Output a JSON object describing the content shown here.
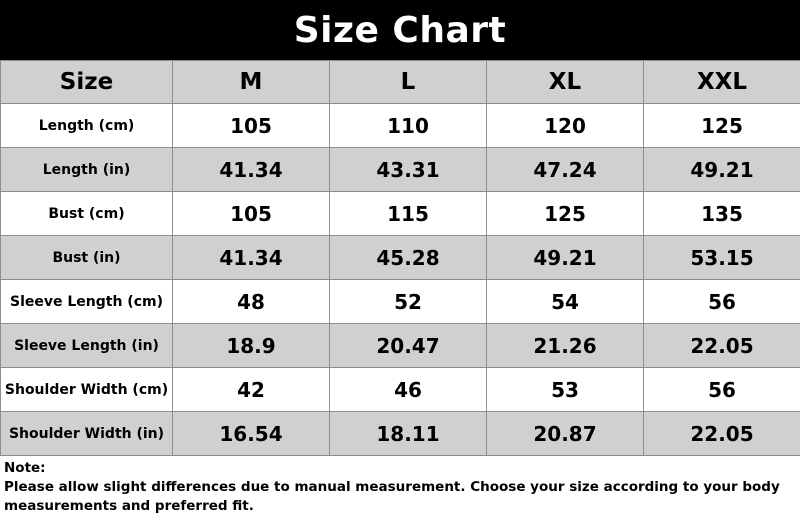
{
  "title": "Size Chart",
  "table": {
    "header_label": "Size",
    "sizes": [
      "M",
      "L",
      "XL",
      "XXL"
    ],
    "rows": [
      {
        "label": "Length (cm)",
        "values": [
          "105",
          "110",
          "120",
          "125"
        ]
      },
      {
        "label": "Length (in)",
        "values": [
          "41.34",
          "43.31",
          "47.24",
          "49.21"
        ]
      },
      {
        "label": "Bust (cm)",
        "values": [
          "105",
          "115",
          "125",
          "135"
        ]
      },
      {
        "label": "Bust (in)",
        "values": [
          "41.34",
          "45.28",
          "49.21",
          "53.15"
        ]
      },
      {
        "label": "Sleeve Length (cm)",
        "values": [
          "48",
          "52",
          "54",
          "56"
        ]
      },
      {
        "label": "Sleeve Length (in)",
        "values": [
          "18.9",
          "20.47",
          "21.26",
          "22.05"
        ]
      },
      {
        "label": "Shoulder Width (cm)",
        "values": [
          "42",
          "46",
          "53",
          "56"
        ]
      },
      {
        "label": "Shoulder Width (in)",
        "values": [
          "16.54",
          "18.11",
          "20.87",
          "22.05"
        ]
      }
    ]
  },
  "note": {
    "heading": "Note:",
    "text": "Please allow slight differences due to manual measurement. Choose your size according to your body measurements and preferred fit."
  },
  "colors": {
    "title_bg": "#000000",
    "title_text": "#ffffff",
    "header_bg": "#d0d0d0",
    "shaded_row_bg": "#d0d0d0",
    "plain_row_bg": "#ffffff",
    "border": "#8c8c8c"
  }
}
